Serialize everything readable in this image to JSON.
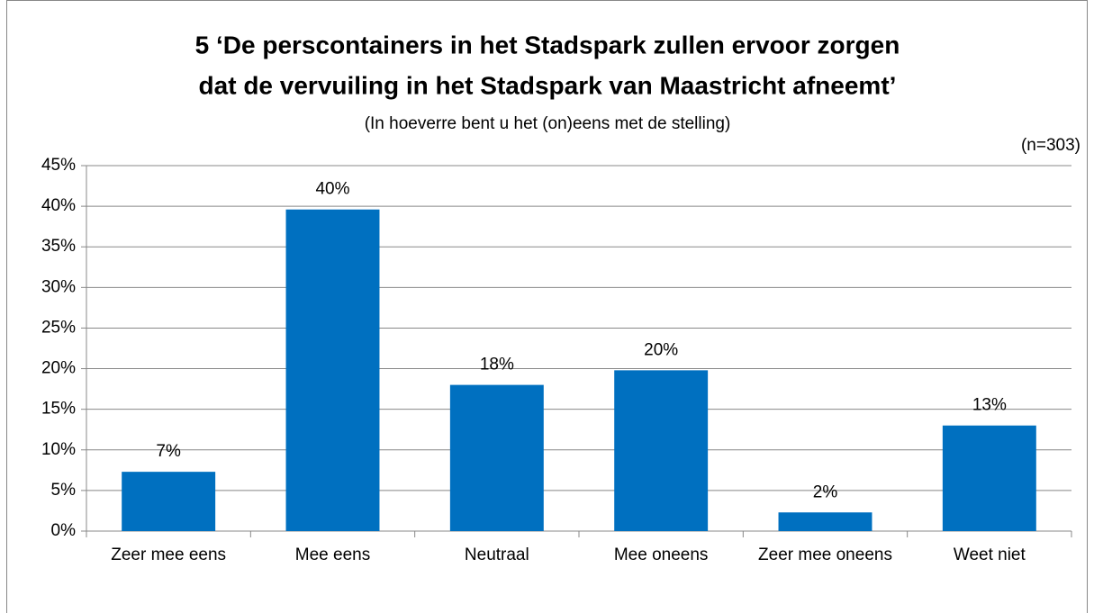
{
  "chart_data": {
    "type": "bar",
    "title": [
      "5 ‘De perscontainers in het Stadspark zullen ervoor zorgen",
      "dat de vervuiling in het Stadspark van Maastricht afneemt’"
    ],
    "subtitle": "(In hoeverre bent u het (on)eens met de stelling)",
    "annotation": "(n=303)",
    "categories": [
      "Zeer mee eens",
      "Mee eens",
      "Neutraal",
      "Mee oneens",
      "Zeer mee oneens",
      "Weet niet"
    ],
    "values": [
      7.3,
      39.6,
      18.0,
      19.8,
      2.3,
      13.0
    ],
    "value_labels": [
      "7%",
      "40%",
      "18%",
      "20%",
      "2%",
      "13%"
    ],
    "color": "#0070c0",
    "ylim": [
      0,
      45
    ],
    "yticks": [
      {
        "value": 0,
        "label": "0%"
      },
      {
        "value": 5,
        "label": "5%"
      },
      {
        "value": 10,
        "label": "10%"
      },
      {
        "value": 15,
        "label": "15%"
      },
      {
        "value": 20,
        "label": "20%"
      },
      {
        "value": 25,
        "label": "25%"
      },
      {
        "value": 30,
        "label": "30%"
      },
      {
        "value": 35,
        "label": "35%"
      },
      {
        "value": 40,
        "label": "40%"
      },
      {
        "value": 45,
        "label": "45%"
      }
    ],
    "grid": true
  }
}
